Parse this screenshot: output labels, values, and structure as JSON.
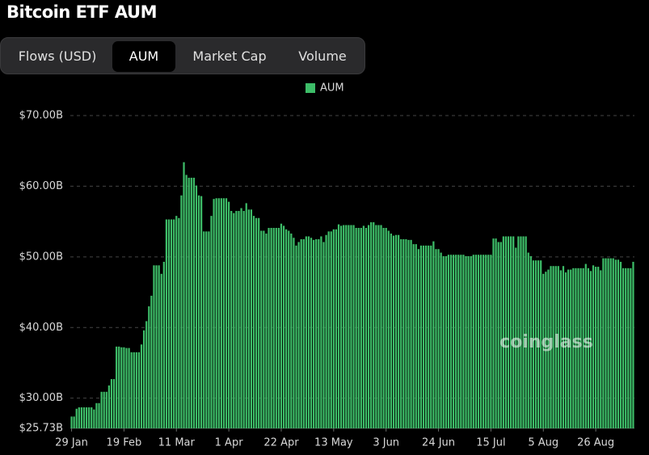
{
  "header": {
    "title": "Bitcoin ETF AUM"
  },
  "tabs": [
    {
      "label": "Flows (USD)",
      "active": false
    },
    {
      "label": "AUM",
      "active": true
    },
    {
      "label": "Market Cap",
      "active": false
    },
    {
      "label": "Volume",
      "active": false
    }
  ],
  "chart_data": {
    "type": "bar",
    "watermark": "coinglass",
    "color": "#3dbd68",
    "grid": true,
    "series": [
      {
        "name": "AUM",
        "color": "#3dbd68",
        "values": [
          27.4,
          27.4,
          28.5,
          28.7,
          28.7,
          28.7,
          28.7,
          28.7,
          28.7,
          28.4,
          29.3,
          29.3,
          30.9,
          30.9,
          30.9,
          31.8,
          32.7,
          32.7,
          37.3,
          37.3,
          37.2,
          37.2,
          37.1,
          37.1,
          36.5,
          36.5,
          36.5,
          36.5,
          37.6,
          39.6,
          40.9,
          43.0,
          44.5,
          48.8,
          48.8,
          48.8,
          47.6,
          49.3,
          55.3,
          55.3,
          55.3,
          55.3,
          55.8,
          55.5,
          58.7,
          63.4,
          61.6,
          61.2,
          61.2,
          61.2,
          60.1,
          58.7,
          58.6,
          53.6,
          53.6,
          53.6,
          55.8,
          58.2,
          58.3,
          58.3,
          58.3,
          58.3,
          58.3,
          57.8,
          56.5,
          56.2,
          56.5,
          56.5,
          56.9,
          56.5,
          57.6,
          56.7,
          56.7,
          55.8,
          55.5,
          55.5,
          53.7,
          53.7,
          53.3,
          54.1,
          54.1,
          54.1,
          54.1,
          54.1,
          54.7,
          54.4,
          53.9,
          53.7,
          53.3,
          52.7,
          51.6,
          52.1,
          52.5,
          52.5,
          52.9,
          52.9,
          52.7,
          52.4,
          52.5,
          52.5,
          52.9,
          52.1,
          53.1,
          53.6,
          53.6,
          53.9,
          53.9,
          54.6,
          54.4,
          54.5,
          54.5,
          54.5,
          54.5,
          54.5,
          54.1,
          54.1,
          54.1,
          54.4,
          54.1,
          54.5,
          54.9,
          54.9,
          54.5,
          54.5,
          54.5,
          54.1,
          54.1,
          53.7,
          53.3,
          53.0,
          53.1,
          53.1,
          52.5,
          52.5,
          52.5,
          52.4,
          52.4,
          51.8,
          51.8,
          51.1,
          51.6,
          51.6,
          51.6,
          51.6,
          51.6,
          52.2,
          51.1,
          51.1,
          50.6,
          50.1,
          50.1,
          50.3,
          50.3,
          50.3,
          50.3,
          50.3,
          50.3,
          50.3,
          50.1,
          50.1,
          50.1,
          50.3,
          50.3,
          50.3,
          50.3,
          50.3,
          50.3,
          50.3,
          50.3,
          52.6,
          52.6,
          52.1,
          52.1,
          52.9,
          52.9,
          52.9,
          52.9,
          52.9,
          51.3,
          52.9,
          52.9,
          52.9,
          52.9,
          50.6,
          50.1,
          49.5,
          49.5,
          49.5,
          49.5,
          47.6,
          47.9,
          48.2,
          48.7,
          48.7,
          48.7,
          48.7,
          48.1,
          48.7,
          47.8,
          48.2,
          48.2,
          48.4,
          48.4,
          48.4,
          48.4,
          48.4,
          49.0,
          48.4,
          48.0,
          48.8,
          48.6,
          48.6,
          48.1,
          49.8,
          49.8,
          49.8,
          49.8,
          49.8,
          49.6,
          49.6,
          49.3,
          48.4,
          48.4,
          48.4,
          48.4,
          49.3
        ]
      }
    ],
    "categories": [
      "29 Jan",
      null,
      null,
      null,
      null,
      null,
      null,
      null,
      null,
      null,
      null,
      null,
      null,
      null,
      null,
      null,
      null,
      null,
      null,
      null,
      null,
      "19 Feb",
      null,
      null,
      null,
      null,
      null,
      null,
      null,
      null,
      null,
      null,
      null,
      null,
      null,
      null,
      null,
      null,
      null,
      null,
      null,
      null,
      "11 Mar",
      null,
      null,
      null,
      null,
      null,
      null,
      null,
      null,
      null,
      null,
      null,
      null,
      null,
      null,
      null,
      null,
      null,
      null,
      null,
      null,
      "1 Apr",
      null,
      null,
      null,
      null,
      null,
      null,
      null,
      null,
      null,
      null,
      null,
      null,
      null,
      null,
      null,
      null,
      null,
      null,
      null,
      null,
      "22 Apr",
      null,
      null,
      null,
      null,
      null,
      null,
      null,
      null,
      null,
      null,
      null,
      null,
      null,
      null,
      null,
      null,
      null,
      null,
      null,
      null,
      "13 May",
      null,
      null,
      null,
      null,
      null,
      null,
      null,
      null,
      null,
      null,
      null,
      null,
      null,
      null,
      null,
      null,
      null,
      null,
      null,
      null,
      "3 Jun",
      null,
      null,
      null,
      null,
      null,
      null,
      null,
      null,
      null,
      null,
      null,
      null,
      null,
      null,
      null,
      null,
      null,
      null,
      null,
      null,
      "24 Jun",
      null,
      null,
      null,
      null,
      null,
      null,
      null,
      null,
      null,
      null,
      null,
      null,
      null,
      null,
      null,
      null,
      null,
      null,
      null,
      null,
      "15 Jul",
      null,
      null,
      null,
      null,
      null,
      null,
      null,
      null,
      null,
      null,
      null,
      null,
      null,
      null,
      null,
      null,
      null,
      null,
      null,
      null,
      "5 Aug",
      null,
      null,
      null,
      null,
      null,
      null,
      null,
      null,
      null,
      null,
      null,
      null,
      null,
      null,
      null,
      null,
      null,
      null,
      null,
      null,
      "26 Aug",
      null,
      null,
      null,
      null,
      null,
      null,
      null,
      null,
      null,
      null,
      null,
      null,
      null,
      null,
      null
    ],
    "ylim": [
      25.73,
      70
    ],
    "yticks": [
      {
        "value": 25.73,
        "label": "$25.73B"
      },
      {
        "value": 30,
        "label": "$30.00B"
      },
      {
        "value": 40,
        "label": "$40.00B"
      },
      {
        "value": 50,
        "label": "$50.00B"
      },
      {
        "value": 60,
        "label": "$60.00B"
      },
      {
        "value": 70,
        "label": "$70.00B"
      }
    ]
  }
}
